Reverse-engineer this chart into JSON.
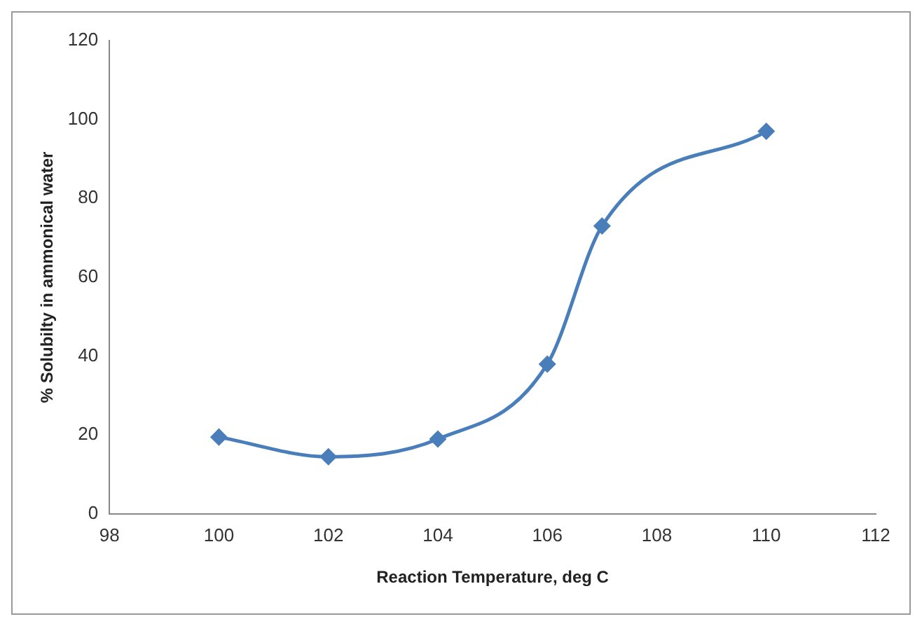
{
  "chart_data": {
    "type": "line",
    "xlabel": "Reaction Temperature, deg C",
    "ylabel": "% Solubilty in ammonical water",
    "x": [
      100,
      102,
      104,
      106,
      107,
      110
    ],
    "series": [
      {
        "color": "#4a7ebb",
        "values": [
          19.5,
          14.5,
          19,
          38,
          73,
          97
        ]
      }
    ],
    "xlim": [
      98,
      112
    ],
    "xticks": [
      98,
      100,
      102,
      104,
      106,
      108,
      110,
      112
    ],
    "ylim": [
      0,
      120
    ],
    "yticks": [
      0,
      20,
      40,
      60,
      80,
      100,
      120
    ],
    "grid": false,
    "legend": false,
    "marker": "diamond",
    "line_style": "solid"
  }
}
